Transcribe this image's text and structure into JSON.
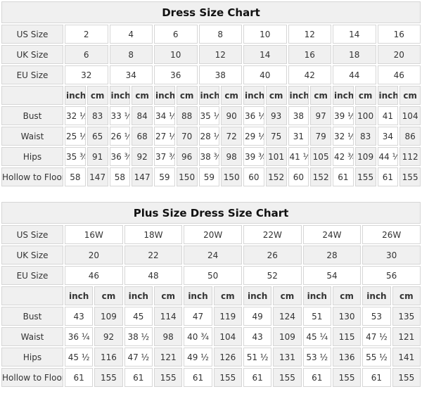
{
  "colors": {
    "shade": "#f0f0f0",
    "border": "#d6d6d6",
    "text": "#333333"
  },
  "tables": [
    {
      "title": "Dress Size Chart",
      "columns": 8,
      "rows": [
        {
          "kind": "size",
          "label": "US Size",
          "shaded": false,
          "cells": [
            "2",
            "4",
            "6",
            "8",
            "10",
            "12",
            "14",
            "16"
          ]
        },
        {
          "kind": "size",
          "label": "UK Size",
          "shaded": true,
          "cells": [
            "6",
            "8",
            "10",
            "12",
            "14",
            "16",
            "18",
            "20"
          ]
        },
        {
          "kind": "size",
          "label": "EU Size",
          "shaded": false,
          "cells": [
            "32",
            "34",
            "36",
            "38",
            "40",
            "42",
            "44",
            "46"
          ]
        },
        {
          "kind": "unit",
          "label": "",
          "cells": [
            "inch",
            "cm",
            "inch",
            "cm",
            "inch",
            "cm",
            "inch",
            "cm",
            "inch",
            "cm",
            "inch",
            "cm",
            "inch",
            "cm",
            "inch",
            "cm"
          ]
        },
        {
          "kind": "measure",
          "label": "Bust",
          "cells": [
            "32 ½",
            "83",
            "33 ½",
            "84",
            "34 ½",
            "88",
            "35 ½",
            "90",
            "36 ½",
            "93",
            "38",
            "97",
            "39 ½",
            "100",
            "41",
            "104"
          ]
        },
        {
          "kind": "measure",
          "label": "Waist",
          "cells": [
            "25 ½",
            "65",
            "26 ½",
            "68",
            "27 ½",
            "70",
            "28 ½",
            "72",
            "29 ½",
            "75",
            "31",
            "79",
            "32 ½",
            "83",
            "34",
            "86"
          ]
        },
        {
          "kind": "measure",
          "label": "Hips",
          "cells": [
            "35 ¾",
            "91",
            "36 ¾",
            "92",
            "37 ¾",
            "96",
            "38 ¾",
            "98",
            "39 ¾",
            "101",
            "41 ¼",
            "105",
            "42 ¾",
            "109",
            "44 ¼",
            "112"
          ]
        },
        {
          "kind": "measure",
          "label": "Hollow to Floor",
          "cells": [
            "58",
            "147",
            "58",
            "147",
            "59",
            "150",
            "59",
            "150",
            "60",
            "152",
            "60",
            "152",
            "61",
            "155",
            "61",
            "155"
          ]
        }
      ]
    },
    {
      "title": "Plus Size Dress Size Chart",
      "columns": 6,
      "rows": [
        {
          "kind": "size",
          "label": "US Size",
          "shaded": false,
          "cells": [
            "16W",
            "18W",
            "20W",
            "22W",
            "24W",
            "26W"
          ]
        },
        {
          "kind": "size",
          "label": "UK Size",
          "shaded": true,
          "cells": [
            "20",
            "22",
            "24",
            "26",
            "28",
            "30"
          ]
        },
        {
          "kind": "size",
          "label": "EU Size",
          "shaded": false,
          "cells": [
            "46",
            "48",
            "50",
            "52",
            "54",
            "56"
          ]
        },
        {
          "kind": "unit",
          "label": "",
          "cells": [
            "inch",
            "cm",
            "inch",
            "cm",
            "inch",
            "cm",
            "inch",
            "cm",
            "inch",
            "cm",
            "inch",
            "cm"
          ]
        },
        {
          "kind": "measure",
          "label": "Bust",
          "cells": [
            "43",
            "109",
            "45",
            "114",
            "47",
            "119",
            "49",
            "124",
            "51",
            "130",
            "53",
            "135"
          ]
        },
        {
          "kind": "measure",
          "label": "Waist",
          "cells": [
            "36 ¼",
            "92",
            "38 ½",
            "98",
            "40 ¾",
            "104",
            "43",
            "109",
            "45 ¼",
            "115",
            "47 ½",
            "121"
          ]
        },
        {
          "kind": "measure",
          "label": "Hips",
          "cells": [
            "45 ½",
            "116",
            "47 ½",
            "121",
            "49 ½",
            "126",
            "51 ½",
            "131",
            "53 ½",
            "136",
            "55 ½",
            "141"
          ]
        },
        {
          "kind": "measure",
          "label": "Hollow to Floor",
          "cells": [
            "61",
            "155",
            "61",
            "155",
            "61",
            "155",
            "61",
            "155",
            "61",
            "155",
            "61",
            "155"
          ]
        }
      ]
    }
  ]
}
